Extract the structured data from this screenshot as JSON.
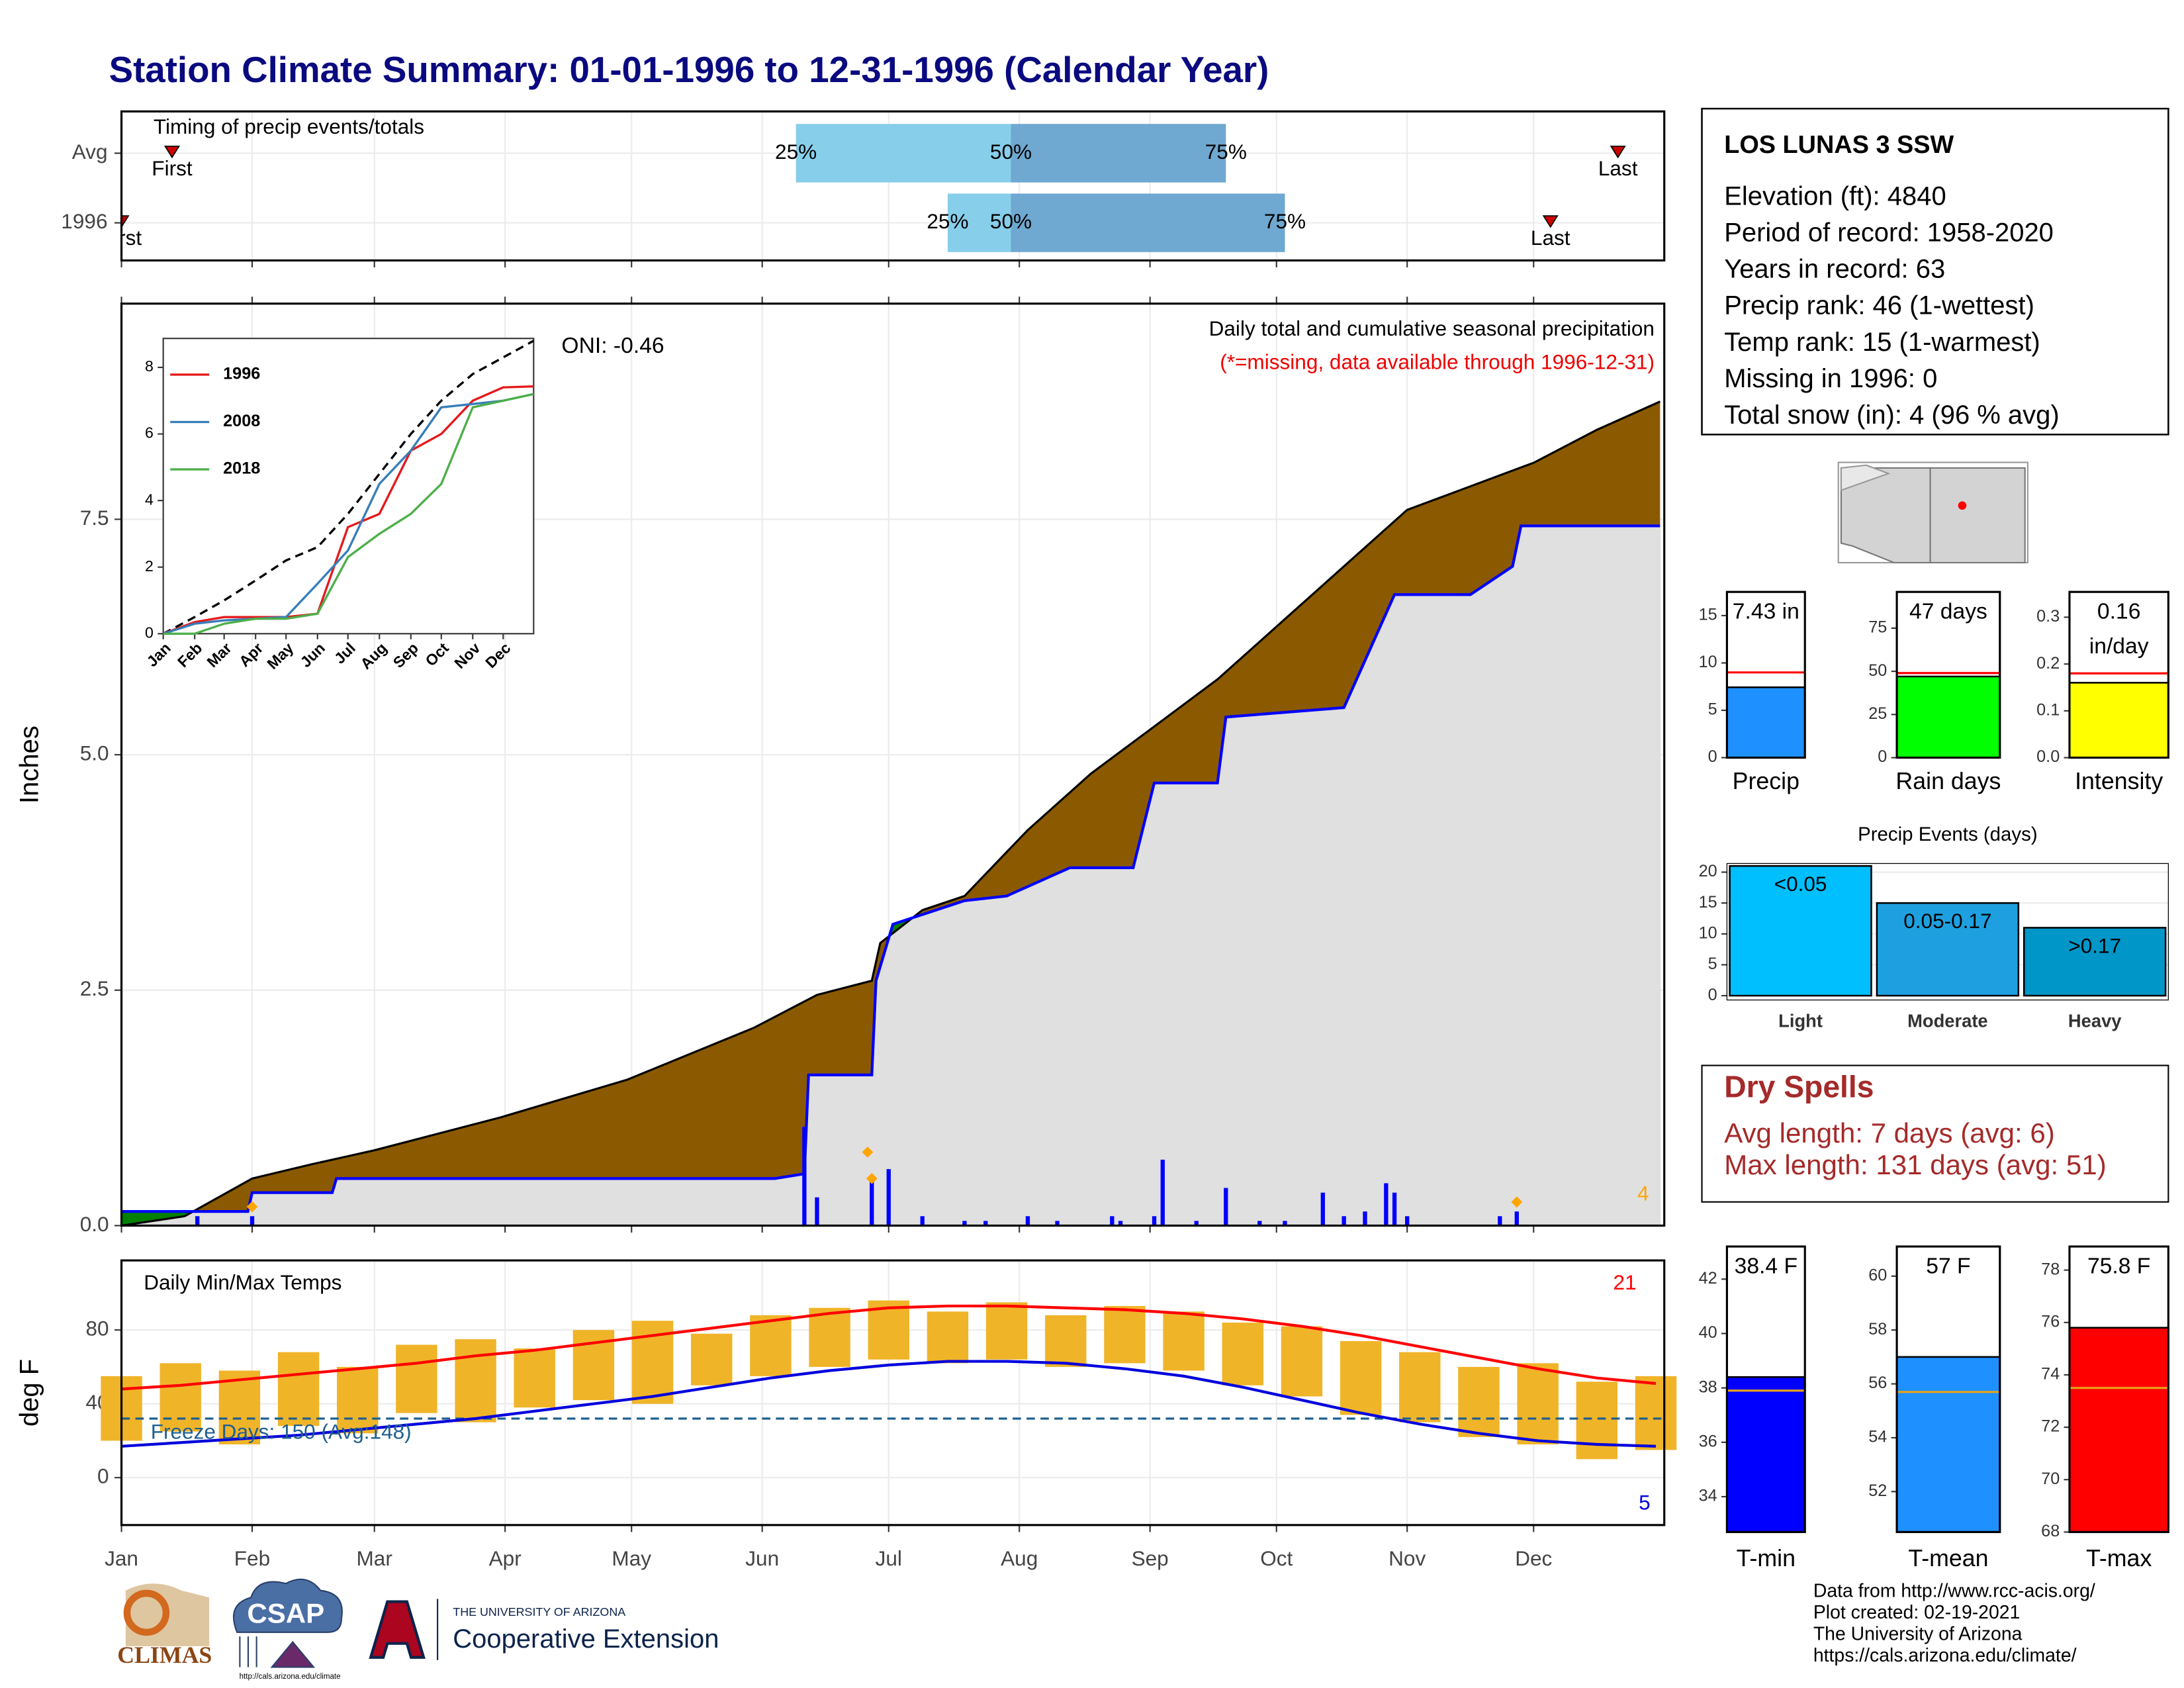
{
  "title": "Station Climate Summary: 01-01-1996 to 12-31-1996 (Calendar Year)",
  "chart_data": [
    {
      "type": "timing",
      "title": "Timing of precip events/totals",
      "rows": [
        "Avg",
        "1996"
      ],
      "labels": [
        "First",
        "25%",
        "50%",
        "75%",
        "Last"
      ],
      "first": [
        12,
        0
      ],
      "q25": [
        160,
        196
      ],
      "q50": [
        211,
        211
      ],
      "q75": [
        262,
        276
      ],
      "last": [
        355,
        339
      ],
      "xlim": [
        0,
        366
      ],
      "xticks": [
        0,
        31,
        60,
        91,
        121,
        152,
        182,
        213,
        244,
        274,
        305,
        335
      ],
      "grid": true,
      "colors": {
        "early": "#87ceeb",
        "late": "#6fa8d0",
        "marker": "#cc0000"
      }
    },
    {
      "type": "area",
      "title": "Daily total and cumulative seasonal precipitation",
      "subtitle": "(*=missing, data available through 1996-12-31)",
      "annotation": "ONI: -0.46",
      "count_label": "4",
      "ylabel": "Inches",
      "xlim": [
        0,
        366
      ],
      "xticks": [
        0,
        31,
        60,
        91,
        121,
        152,
        182,
        213,
        244,
        274,
        305,
        335
      ],
      "ylim": [
        0,
        9.79
      ],
      "yticks": [
        {
          "value": 0,
          "label": "0.0"
        },
        2.5,
        {
          "value": 5,
          "label": "5.0"
        },
        7.5
      ],
      "grid": true,
      "series": [
        {
          "color": "#000000",
          "x": [
            0,
            15,
            31,
            45,
            60,
            90,
            120,
            150,
            165,
            178,
            180,
            190,
            200,
            215,
            230,
            245,
            260,
            275,
            290,
            305,
            320,
            335,
            350,
            365
          ],
          "values": [
            0,
            0.1,
            0.5,
            0.65,
            0.8,
            1.15,
            1.55,
            2.1,
            2.45,
            2.6,
            3.0,
            3.35,
            3.5,
            4.2,
            4.8,
            5.3,
            5.8,
            6.4,
            7.0,
            7.6,
            7.85,
            8.1,
            8.45,
            8.75
          ]
        },
        {
          "color": "#0000ff",
          "x": [
            0,
            30,
            31,
            50,
            51,
            155,
            162,
            163,
            178,
            179,
            183,
            200,
            210,
            225,
            240,
            245,
            260,
            262,
            290,
            295,
            302,
            320,
            330,
            332,
            365
          ],
          "values": [
            0.15,
            0.15,
            0.35,
            0.35,
            0.5,
            0.5,
            0.55,
            1.6,
            1.6,
            2.6,
            3.2,
            3.45,
            3.5,
            3.8,
            3.8,
            4.7,
            4.7,
            5.4,
            5.5,
            6.0,
            6.7,
            6.7,
            7.0,
            7.43,
            7.43
          ]
        }
      ],
      "fills": {
        "deficit": "#8b5a00",
        "surplus": "#008000",
        "base": "#e0e0e0"
      },
      "daily": {
        "color": "#0000ff",
        "x": [
          18,
          31,
          162,
          165,
          178,
          182,
          190,
          200,
          205,
          215,
          222,
          235,
          237,
          245,
          247,
          255,
          262,
          270,
          276,
          285,
          290,
          295,
          300,
          302,
          305,
          327,
          331
        ],
        "values": [
          0.1,
          0.1,
          1.05,
          0.3,
          0.5,
          0.6,
          0.1,
          0.05,
          0.05,
          0.1,
          0.05,
          0.1,
          0.05,
          0.1,
          0.7,
          0.05,
          0.4,
          0.05,
          0.05,
          0.35,
          0.1,
          0.15,
          0.45,
          0.35,
          0.1,
          0.1,
          0.15
        ]
      },
      "extremes": {
        "color": "#ffa500",
        "x": [
          31,
          177,
          178,
          331
        ],
        "values": [
          0.2,
          0.78,
          0.5,
          0.25
        ]
      }
    },
    {
      "type": "line",
      "legend": "upper left",
      "xlim": [
        0,
        365
      ],
      "ylim": [
        0,
        8.87
      ],
      "yticks": [
        0,
        2,
        4,
        6,
        8
      ],
      "xticks": [
        {
          "value": 0,
          "label": "Jan"
        },
        {
          "value": 31,
          "label": "Feb"
        },
        {
          "value": 60,
          "label": "Mar"
        },
        {
          "value": 91,
          "label": "Apr"
        },
        {
          "value": 121,
          "label": "May"
        },
        {
          "value": 152,
          "label": "Jun"
        },
        {
          "value": 182,
          "label": "Jul"
        },
        {
          "value": 213,
          "label": "Aug"
        },
        {
          "value": 244,
          "label": "Sep"
        },
        {
          "value": 274,
          "label": "Oct"
        },
        {
          "value": 305,
          "label": "Nov"
        },
        {
          "value": 335,
          "label": "Dec"
        }
      ],
      "x": [
        0,
        31,
        60,
        91,
        121,
        152,
        182,
        213,
        244,
        274,
        305,
        335,
        365
      ],
      "average": {
        "color": "#000000",
        "values": [
          0,
          0.5,
          1.0,
          1.6,
          2.2,
          2.6,
          3.6,
          4.8,
          6.0,
          7.0,
          7.8,
          8.3,
          8.8
        ]
      },
      "series": [
        {
          "name": "1996",
          "color": "#e41a1c",
          "values": [
            0,
            0.35,
            0.5,
            0.5,
            0.5,
            0.6,
            3.2,
            3.6,
            5.5,
            6.0,
            7.0,
            7.4,
            7.43
          ]
        },
        {
          "name": "2008",
          "color": "#377eb8",
          "values": [
            0,
            0.3,
            0.4,
            0.45,
            0.5,
            1.5,
            2.5,
            4.5,
            5.5,
            6.8,
            6.9,
            7.0,
            7.2
          ]
        },
        {
          "name": "2018",
          "color": "#4daf4a",
          "values": [
            0,
            0,
            0.3,
            0.45,
            0.45,
            0.6,
            2.3,
            3.0,
            3.6,
            4.5,
            6.8,
            7.0,
            7.2
          ]
        }
      ]
    },
    {
      "type": "band",
      "title": "Daily Min/Max Temps",
      "ylabel": "deg F",
      "annotation": "Freeze Days: 150 (Avg:148)",
      "max_count": "21",
      "min_count": "5",
      "freeze": 32,
      "xlim": [
        0,
        366
      ],
      "ylim": [
        -25.7,
        117.7
      ],
      "yticks": [
        0,
        40,
        80
      ],
      "grid": true,
      "xticks": [
        {
          "value": 0,
          "label": "Jan"
        },
        {
          "value": 31,
          "label": "Feb"
        },
        {
          "value": 60,
          "label": "Mar"
        },
        {
          "value": 91,
          "label": "Apr"
        },
        {
          "value": 121,
          "label": "May"
        },
        {
          "value": 152,
          "label": "Jun"
        },
        {
          "value": 182,
          "label": "Jul"
        },
        {
          "value": 213,
          "label": "Aug"
        },
        {
          "value": 244,
          "label": "Sep"
        },
        {
          "value": 274,
          "label": "Oct"
        },
        {
          "value": 305,
          "label": "Nov"
        },
        {
          "value": 335,
          "label": "Dec"
        }
      ],
      "x": [
        0,
        14,
        28,
        42,
        56,
        70,
        84,
        98,
        112,
        126,
        140,
        154,
        168,
        182,
        196,
        210,
        224,
        238,
        252,
        266,
        280,
        294,
        308,
        322,
        336,
        350,
        364
      ],
      "obs_max": [
        55,
        62,
        58,
        68,
        60,
        72,
        75,
        70,
        80,
        85,
        78,
        88,
        92,
        96,
        90,
        95,
        88,
        93,
        90,
        84,
        82,
        74,
        68,
        60,
        62,
        52,
        55
      ],
      "obs_min": [
        20,
        25,
        18,
        28,
        24,
        35,
        30,
        38,
        42,
        40,
        50,
        55,
        60,
        64,
        62,
        64,
        60,
        62,
        58,
        50,
        44,
        34,
        30,
        22,
        18,
        10,
        15
      ],
      "avg_max": [
        48,
        50,
        53,
        56,
        59,
        62,
        66,
        69,
        73,
        77,
        81,
        85,
        89,
        92,
        93,
        93,
        92,
        91,
        89,
        86,
        82,
        77,
        71,
        65,
        59,
        54,
        51
      ],
      "avg_min": [
        17,
        19,
        21,
        23,
        26,
        29,
        32,
        36,
        40,
        44,
        49,
        54,
        58,
        61,
        63,
        63,
        62,
        59,
        55,
        49,
        42,
        35,
        29,
        24,
        20,
        18,
        17
      ],
      "colors": {
        "bars": "#f0b429",
        "max": "#ff0000",
        "min": "#0000dd",
        "freeze": "#1f5f8f"
      }
    },
    {
      "type": "bar",
      "categories": [
        "Precip"
      ],
      "values": [
        7.43
      ],
      "value_labels": [
        "7.43 in"
      ],
      "reference": [
        9.0
      ],
      "color": "#1e90ff",
      "ylim": [
        0,
        17.5
      ],
      "yticks": [
        0,
        5,
        10,
        15
      ]
    },
    {
      "type": "bar",
      "categories": [
        "Rain days"
      ],
      "values": [
        47
      ],
      "value_labels": [
        "47 days"
      ],
      "reference": [
        49
      ],
      "color": "#00ff00",
      "ylim": [
        0,
        96
      ],
      "yticks": [
        0,
        25,
        50,
        75
      ]
    },
    {
      "type": "bar",
      "categories": [
        "Intensity"
      ],
      "values": [
        0.16
      ],
      "value_labels": [
        "0.16"
      ],
      "unit": "in/day",
      "reference": [
        0.18
      ],
      "color": "#ffff00",
      "ylim": [
        0,
        0.354
      ],
      "yticks": [
        {
          "value": 0,
          "label": "0.0"
        },
        0.1,
        0.2,
        0.3
      ]
    },
    {
      "type": "bar",
      "title": "Precip Events (days)",
      "categories": [
        "Light",
        "Moderate",
        "Heavy"
      ],
      "bin_labels": [
        "<0.05",
        "0.05-0.17",
        ">0.17"
      ],
      "values": [
        21,
        15,
        11
      ],
      "colors": [
        "#00bfff",
        "#1ea0e0",
        "#0096c8"
      ],
      "ylim": [
        -0.7,
        21.4
      ],
      "yticks": [
        0,
        5,
        10,
        15,
        20
      ],
      "grid": true
    },
    {
      "type": "bar",
      "categories": [
        "T-min"
      ],
      "values": [
        38.4
      ],
      "value_labels": [
        "38.4 F"
      ],
      "reference": [
        37.9
      ],
      "color": "#0000ff",
      "ylim": [
        32.7,
        43.2
      ],
      "yticks": [
        34,
        36,
        38,
        40,
        42
      ]
    },
    {
      "type": "bar",
      "categories": [
        "T-mean"
      ],
      "values": [
        57
      ],
      "value_labels": [
        "57 F"
      ],
      "reference": [
        55.7
      ],
      "color": "#1e90ff",
      "ylim": [
        50.5,
        61.1
      ],
      "yticks": [
        52,
        54,
        56,
        58,
        60
      ]
    },
    {
      "type": "bar",
      "categories": [
        "T-max"
      ],
      "values": [
        75.8
      ],
      "value_labels": [
        "75.8 F"
      ],
      "reference": [
        73.5
      ],
      "color": "#ff0000",
      "ylim": [
        68,
        78.9
      ],
      "yticks": [
        68,
        70,
        72,
        74,
        76,
        78
      ]
    }
  ],
  "station": {
    "name": "LOS LUNAS 3 SSW",
    "lines": [
      "Elevation (ft): 4840",
      "Period of record: 1958-2020",
      "Years in record: 63",
      "Precip rank: 46 (1-wettest)",
      "Temp rank: 15 (1-warmest)",
      "Missing in 1996: 0",
      "Total snow (in): 4 (96 % avg)"
    ]
  },
  "dry_spells": {
    "title": "Dry Spells",
    "lines": [
      "Avg length: 7 days (avg: 6)",
      "Max length: 131 days (avg: 51)"
    ]
  },
  "footer": [
    "Data from http://www.rcc-acis.org/",
    "Plot created: 02-19-2021",
    "The University of Arizona",
    "https://cals.arizona.edu/climate/"
  ],
  "logos": {
    "climas": "CLIMAS",
    "csap": "CSAP",
    "csap_url": "http://cals.arizona.edu/climate",
    "university": "THE UNIVERSITY OF ARIZONA",
    "extension": "Cooperative Extension"
  }
}
